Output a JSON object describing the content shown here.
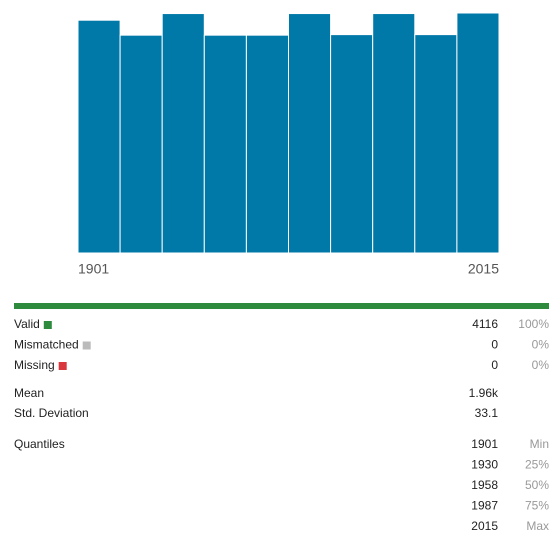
{
  "chart_data": {
    "type": "histogram",
    "values": [
      420,
      393,
      432,
      393,
      393,
      432,
      394,
      432,
      394,
      433
    ],
    "color": "#0079a8",
    "xlim": [
      1901,
      2015
    ],
    "xticks": [
      1901,
      2015
    ],
    "ylim": [
      0,
      433
    ]
  },
  "stats": {
    "rows": [
      {
        "label": "Valid",
        "value": 4116,
        "pct": "100%",
        "color": "#2e8b3e"
      },
      {
        "label": "Mismatched",
        "value": 0,
        "pct": "0%",
        "color": "#bbbbbb"
      },
      {
        "label": "Missing",
        "value": 0,
        "pct": "0%",
        "color": "#d9363e"
      }
    ],
    "mean": {
      "label": "Mean",
      "value": "1.96k"
    },
    "std": {
      "label": "Std. Deviation",
      "value": 33.1
    },
    "quantiles": {
      "label": "Quantiles",
      "items": [
        {
          "value": 1901,
          "label": "Min"
        },
        {
          "value": 1930,
          "label": "25%"
        },
        {
          "value": 1958,
          "label": "50%"
        },
        {
          "value": 1987,
          "label": "75%"
        },
        {
          "value": 2015,
          "label": "Max"
        }
      ]
    },
    "bar_color": "#2e8b3e"
  }
}
